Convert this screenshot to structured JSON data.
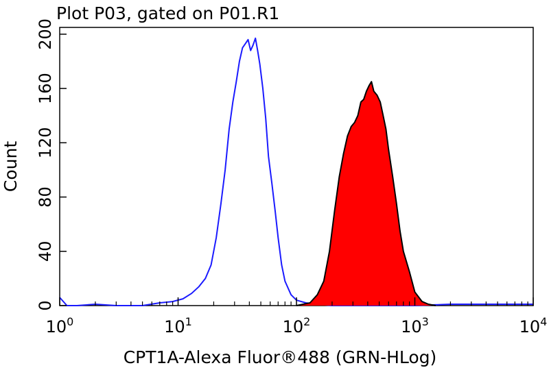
{
  "chart_data": {
    "type": "area",
    "title": "Plot P03, gated on P01.R1",
    "xlabel": "CPT1A-Alexa Fluor®488 (GRN-HLog)",
    "ylabel": "Count",
    "x_scale": "log",
    "xlim": [
      1,
      10000
    ],
    "ylim": [
      0,
      205
    ],
    "x_ticks": [
      {
        "value": 1,
        "base": "10",
        "exp": "0"
      },
      {
        "value": 10,
        "base": "10",
        "exp": "1"
      },
      {
        "value": 100,
        "base": "10",
        "exp": "2"
      },
      {
        "value": 1000,
        "base": "10",
        "exp": "3"
      },
      {
        "value": 10000,
        "base": "10",
        "exp": "4"
      }
    ],
    "y_ticks": [
      "0",
      "40",
      "80",
      "120",
      "160",
      "200"
    ],
    "grid": false,
    "legend": "none",
    "series": [
      {
        "color": "#1a1aff",
        "fill": "none",
        "x": [
          1,
          1.15,
          1.4,
          2,
          3,
          5,
          7,
          9,
          11,
          13,
          15,
          17,
          19,
          21,
          23,
          25,
          27,
          29,
          31,
          33,
          35,
          37,
          39,
          41,
          43,
          45,
          47,
          49,
          52,
          55,
          58,
          62,
          66,
          70,
          75,
          80,
          90,
          100,
          120,
          150,
          200,
          300,
          500,
          1000,
          2000,
          5000,
          10000
        ],
        "values": [
          6,
          0,
          0,
          1,
          0,
          0,
          2,
          3,
          5,
          9,
          14,
          20,
          30,
          50,
          75,
          100,
          130,
          150,
          165,
          180,
          190,
          193,
          196,
          188,
          192,
          197,
          188,
          178,
          160,
          138,
          110,
          90,
          70,
          50,
          30,
          18,
          8,
          4,
          2,
          1,
          0,
          0,
          0,
          0,
          1,
          1,
          1
        ]
      },
      {
        "color": "#000000",
        "fill": "#ff0000",
        "x": [
          100,
          130,
          150,
          170,
          190,
          210,
          230,
          250,
          270,
          290,
          310,
          330,
          350,
          370,
          390,
          410,
          430,
          450,
          480,
          510,
          540,
          570,
          600,
          650,
          700,
          750,
          800,
          900,
          1000,
          1150,
          1300,
          1500
        ],
        "values": [
          0,
          2,
          8,
          18,
          40,
          70,
          95,
          112,
          125,
          132,
          135,
          140,
          150,
          152,
          158,
          162,
          165,
          158,
          155,
          150,
          140,
          130,
          115,
          95,
          75,
          55,
          40,
          25,
          10,
          3,
          1,
          0
        ]
      }
    ]
  }
}
